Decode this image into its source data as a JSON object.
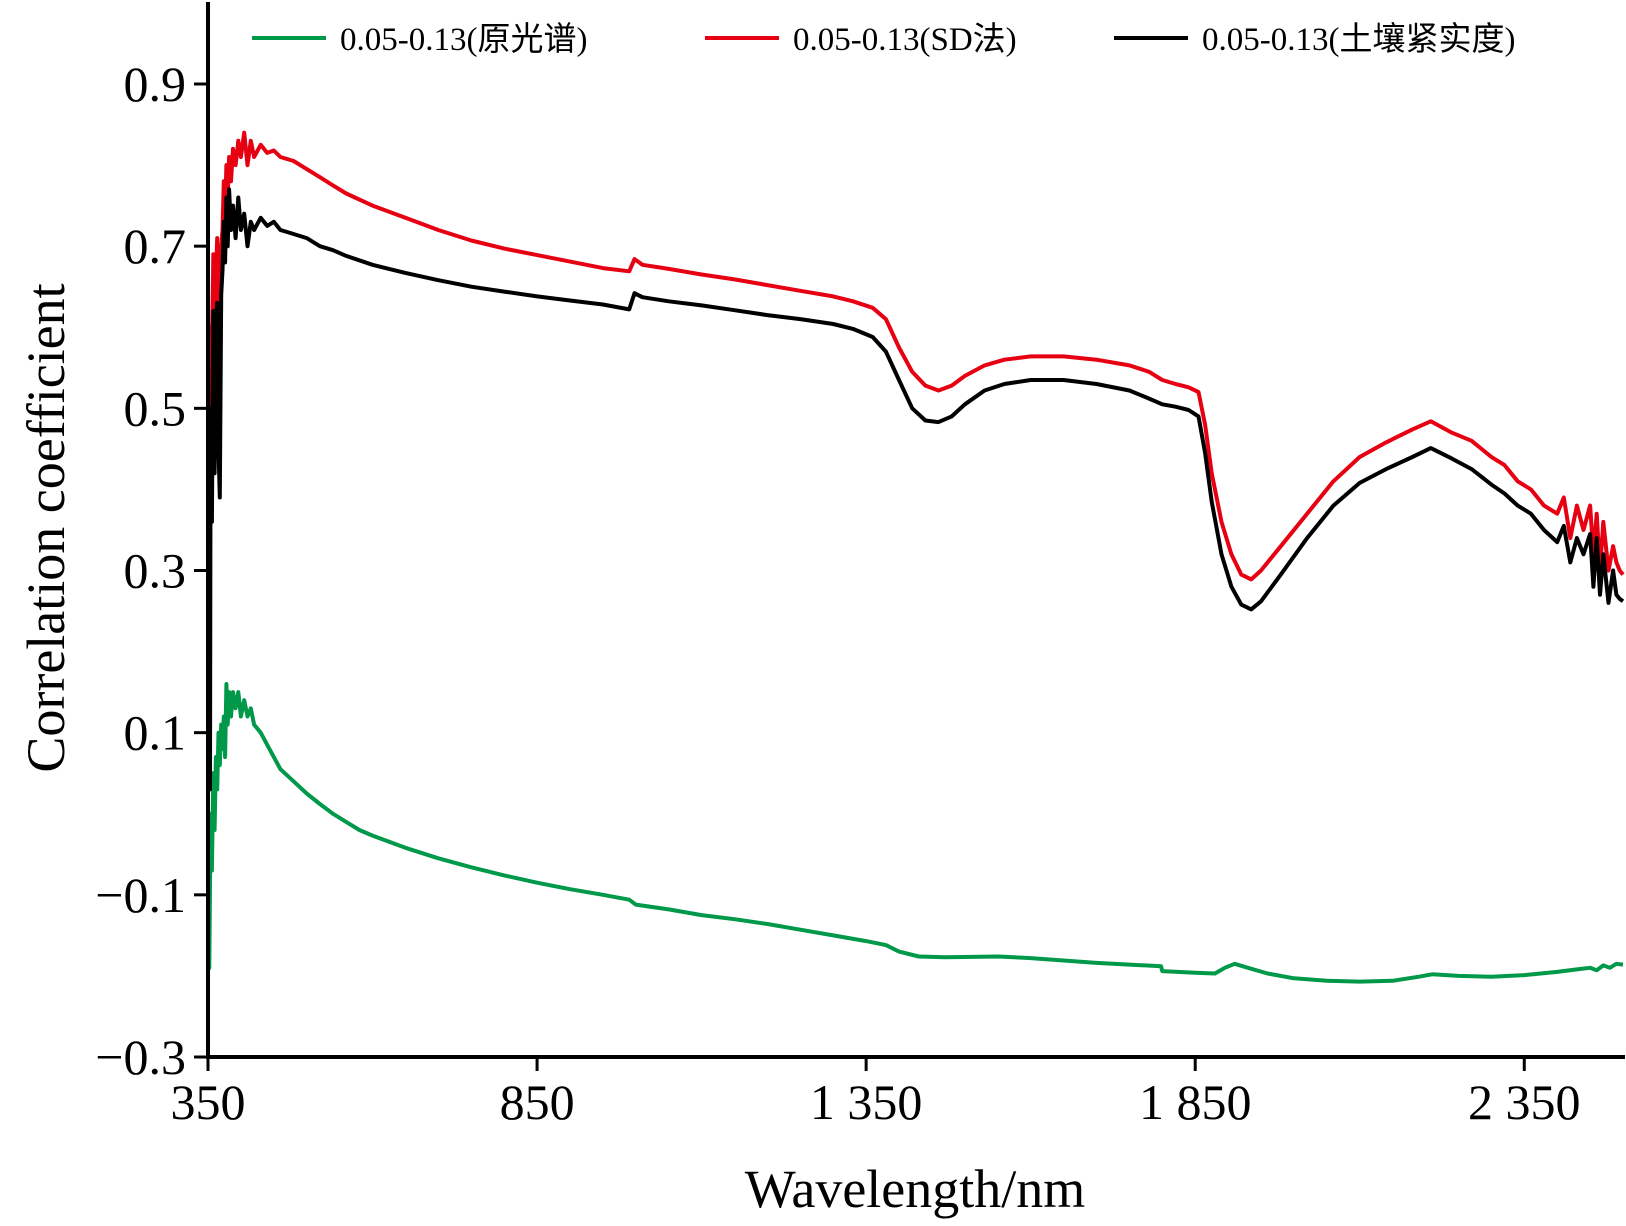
{
  "chart_data": {
    "type": "line",
    "title": "",
    "xlabel": "Wavelength/nm",
    "ylabel": "Correlation coefficient",
    "xlim": [
      350,
      2500
    ],
    "ylim": [
      -0.3,
      1.0
    ],
    "x_ticks": [
      350,
      850,
      1350,
      1850,
      2350
    ],
    "x_tick_labels": [
      "350",
      "850",
      "1 350",
      "1 850",
      "2 350"
    ],
    "y_ticks": [
      0.9,
      0.7,
      0.5,
      0.3,
      0.1,
      -0.1,
      -0.3
    ],
    "y_tick_labels": [
      "0.9",
      "0.7",
      "0.5",
      "0.3",
      "0.1",
      "−0.1",
      "−0.3"
    ],
    "grid": false,
    "legend_position": "top",
    "series": [
      {
        "name": "0.05-0.13(原光谱)",
        "color": "#00994a",
        "points": [
          [
            350,
            -0.02
          ],
          [
            352,
            -0.19
          ],
          [
            354,
            0.0
          ],
          [
            356,
            -0.07
          ],
          [
            358,
            0.05
          ],
          [
            360,
            -0.02
          ],
          [
            362,
            0.07
          ],
          [
            364,
            0.03
          ],
          [
            366,
            0.1
          ],
          [
            368,
            0.06
          ],
          [
            370,
            0.11
          ],
          [
            372,
            0.08
          ],
          [
            374,
            0.12
          ],
          [
            376,
            0.07
          ],
          [
            378,
            0.16
          ],
          [
            380,
            0.11
          ],
          [
            382,
            0.15
          ],
          [
            385,
            0.12
          ],
          [
            388,
            0.15
          ],
          [
            392,
            0.13
          ],
          [
            396,
            0.15
          ],
          [
            400,
            0.12
          ],
          [
            405,
            0.14
          ],
          [
            410,
            0.12
          ],
          [
            415,
            0.13
          ],
          [
            420,
            0.11
          ],
          [
            430,
            0.1
          ],
          [
            440,
            0.085
          ],
          [
            450,
            0.07
          ],
          [
            460,
            0.055
          ],
          [
            480,
            0.04
          ],
          [
            500,
            0.025
          ],
          [
            520,
            0.012
          ],
          [
            540,
            0.0
          ],
          [
            560,
            -0.01
          ],
          [
            580,
            -0.02
          ],
          [
            600,
            -0.027
          ],
          [
            650,
            -0.042
          ],
          [
            700,
            -0.055
          ],
          [
            750,
            -0.066
          ],
          [
            800,
            -0.076
          ],
          [
            850,
            -0.085
          ],
          [
            900,
            -0.093
          ],
          [
            950,
            -0.1
          ],
          [
            990,
            -0.106
          ],
          [
            1000,
            -0.112
          ],
          [
            1050,
            -0.118
          ],
          [
            1100,
            -0.125
          ],
          [
            1150,
            -0.13
          ],
          [
            1200,
            -0.136
          ],
          [
            1250,
            -0.143
          ],
          [
            1300,
            -0.15
          ],
          [
            1350,
            -0.157
          ],
          [
            1380,
            -0.162
          ],
          [
            1400,
            -0.17
          ],
          [
            1430,
            -0.176
          ],
          [
            1470,
            -0.177
          ],
          [
            1550,
            -0.176
          ],
          [
            1600,
            -0.178
          ],
          [
            1650,
            -0.181
          ],
          [
            1700,
            -0.184
          ],
          [
            1750,
            -0.186
          ],
          [
            1798,
            -0.188
          ],
          [
            1800,
            -0.194
          ],
          [
            1850,
            -0.196
          ],
          [
            1880,
            -0.197
          ],
          [
            1895,
            -0.19
          ],
          [
            1910,
            -0.185
          ],
          [
            1930,
            -0.19
          ],
          [
            1960,
            -0.197
          ],
          [
            2000,
            -0.203
          ],
          [
            2050,
            -0.206
          ],
          [
            2100,
            -0.207
          ],
          [
            2150,
            -0.206
          ],
          [
            2190,
            -0.201
          ],
          [
            2210,
            -0.198
          ],
          [
            2250,
            -0.2
          ],
          [
            2300,
            -0.201
          ],
          [
            2350,
            -0.199
          ],
          [
            2400,
            -0.195
          ],
          [
            2430,
            -0.192
          ],
          [
            2450,
            -0.19
          ],
          [
            2460,
            -0.193
          ],
          [
            2470,
            -0.187
          ],
          [
            2480,
            -0.19
          ],
          [
            2490,
            -0.185
          ],
          [
            2500,
            -0.186
          ]
        ]
      },
      {
        "name": "0.05-0.13(SD法)",
        "color": "#e60012",
        "points": [
          [
            350,
            0.67
          ],
          [
            352,
            0.45
          ],
          [
            354,
            0.6
          ],
          [
            356,
            0.52
          ],
          [
            358,
            0.69
          ],
          [
            360,
            0.58
          ],
          [
            362,
            0.66
          ],
          [
            364,
            0.71
          ],
          [
            366,
            0.55
          ],
          [
            368,
            0.45
          ],
          [
            370,
            0.7
          ],
          [
            372,
            0.72
          ],
          [
            374,
            0.78
          ],
          [
            376,
            0.74
          ],
          [
            378,
            0.8
          ],
          [
            380,
            0.76
          ],
          [
            382,
            0.81
          ],
          [
            385,
            0.78
          ],
          [
            388,
            0.82
          ],
          [
            392,
            0.8
          ],
          [
            396,
            0.83
          ],
          [
            400,
            0.81
          ],
          [
            405,
            0.84
          ],
          [
            410,
            0.8
          ],
          [
            415,
            0.83
          ],
          [
            420,
            0.81
          ],
          [
            430,
            0.825
          ],
          [
            440,
            0.815
          ],
          [
            450,
            0.818
          ],
          [
            460,
            0.81
          ],
          [
            480,
            0.805
          ],
          [
            500,
            0.795
          ],
          [
            520,
            0.785
          ],
          [
            540,
            0.775
          ],
          [
            560,
            0.765
          ],
          [
            600,
            0.75
          ],
          [
            650,
            0.735
          ],
          [
            700,
            0.72
          ],
          [
            750,
            0.707
          ],
          [
            800,
            0.697
          ],
          [
            850,
            0.689
          ],
          [
            900,
            0.681
          ],
          [
            950,
            0.673
          ],
          [
            990,
            0.669
          ],
          [
            998,
            0.684
          ],
          [
            1010,
            0.677
          ],
          [
            1050,
            0.672
          ],
          [
            1100,
            0.665
          ],
          [
            1150,
            0.659
          ],
          [
            1200,
            0.652
          ],
          [
            1250,
            0.645
          ],
          [
            1300,
            0.638
          ],
          [
            1330,
            0.632
          ],
          [
            1360,
            0.624
          ],
          [
            1380,
            0.61
          ],
          [
            1400,
            0.575
          ],
          [
            1420,
            0.545
          ],
          [
            1440,
            0.528
          ],
          [
            1460,
            0.522
          ],
          [
            1480,
            0.528
          ],
          [
            1500,
            0.54
          ],
          [
            1530,
            0.553
          ],
          [
            1560,
            0.56
          ],
          [
            1600,
            0.564
          ],
          [
            1650,
            0.564
          ],
          [
            1700,
            0.56
          ],
          [
            1750,
            0.553
          ],
          [
            1780,
            0.545
          ],
          [
            1800,
            0.535
          ],
          [
            1820,
            0.53
          ],
          [
            1840,
            0.526
          ],
          [
            1855,
            0.52
          ],
          [
            1865,
            0.48
          ],
          [
            1875,
            0.42
          ],
          [
            1890,
            0.36
          ],
          [
            1905,
            0.32
          ],
          [
            1920,
            0.295
          ],
          [
            1935,
            0.289
          ],
          [
            1950,
            0.3
          ],
          [
            1980,
            0.33
          ],
          [
            2020,
            0.37
          ],
          [
            2060,
            0.41
          ],
          [
            2100,
            0.44
          ],
          [
            2140,
            0.458
          ],
          [
            2180,
            0.474
          ],
          [
            2208,
            0.484
          ],
          [
            2240,
            0.47
          ],
          [
            2270,
            0.46
          ],
          [
            2300,
            0.44
          ],
          [
            2320,
            0.43
          ],
          [
            2340,
            0.41
          ],
          [
            2360,
            0.4
          ],
          [
            2380,
            0.38
          ],
          [
            2400,
            0.37
          ],
          [
            2410,
            0.39
          ],
          [
            2420,
            0.34
          ],
          [
            2430,
            0.38
          ],
          [
            2440,
            0.35
          ],
          [
            2450,
            0.38
          ],
          [
            2455,
            0.32
          ],
          [
            2460,
            0.37
          ],
          [
            2465,
            0.3
          ],
          [
            2470,
            0.36
          ],
          [
            2478,
            0.3
          ],
          [
            2485,
            0.33
          ],
          [
            2490,
            0.31
          ],
          [
            2495,
            0.3
          ],
          [
            2500,
            0.295
          ]
        ]
      },
      {
        "name": "0.05-0.13(土壤紧实度)",
        "color": "#000000",
        "points": [
          [
            350,
            0.63
          ],
          [
            351,
            0.2
          ],
          [
            352,
            0.38
          ],
          [
            353,
            0.03
          ],
          [
            354,
            0.5
          ],
          [
            356,
            0.36
          ],
          [
            358,
            0.62
          ],
          [
            360,
            0.42
          ],
          [
            362,
            0.6
          ],
          [
            364,
            0.63
          ],
          [
            366,
            0.45
          ],
          [
            368,
            0.39
          ],
          [
            370,
            0.64
          ],
          [
            372,
            0.67
          ],
          [
            374,
            0.73
          ],
          [
            376,
            0.68
          ],
          [
            378,
            0.76
          ],
          [
            380,
            0.7
          ],
          [
            382,
            0.77
          ],
          [
            385,
            0.72
          ],
          [
            388,
            0.75
          ],
          [
            392,
            0.71
          ],
          [
            396,
            0.76
          ],
          [
            400,
            0.72
          ],
          [
            405,
            0.74
          ],
          [
            410,
            0.7
          ],
          [
            415,
            0.73
          ],
          [
            420,
            0.72
          ],
          [
            430,
            0.735
          ],
          [
            440,
            0.725
          ],
          [
            450,
            0.73
          ],
          [
            460,
            0.72
          ],
          [
            480,
            0.715
          ],
          [
            500,
            0.71
          ],
          [
            520,
            0.7
          ],
          [
            540,
            0.695
          ],
          [
            560,
            0.688
          ],
          [
            600,
            0.677
          ],
          [
            650,
            0.667
          ],
          [
            700,
            0.658
          ],
          [
            750,
            0.65
          ],
          [
            800,
            0.644
          ],
          [
            850,
            0.638
          ],
          [
            900,
            0.633
          ],
          [
            950,
            0.628
          ],
          [
            990,
            0.622
          ],
          [
            998,
            0.642
          ],
          [
            1010,
            0.637
          ],
          [
            1050,
            0.632
          ],
          [
            1100,
            0.627
          ],
          [
            1150,
            0.621
          ],
          [
            1200,
            0.615
          ],
          [
            1250,
            0.61
          ],
          [
            1300,
            0.604
          ],
          [
            1330,
            0.598
          ],
          [
            1360,
            0.588
          ],
          [
            1380,
            0.57
          ],
          [
            1400,
            0.535
          ],
          [
            1420,
            0.5
          ],
          [
            1440,
            0.485
          ],
          [
            1460,
            0.483
          ],
          [
            1480,
            0.49
          ],
          [
            1500,
            0.505
          ],
          [
            1530,
            0.522
          ],
          [
            1560,
            0.53
          ],
          [
            1600,
            0.535
          ],
          [
            1650,
            0.535
          ],
          [
            1700,
            0.53
          ],
          [
            1750,
            0.522
          ],
          [
            1780,
            0.512
          ],
          [
            1800,
            0.505
          ],
          [
            1820,
            0.502
          ],
          [
            1840,
            0.498
          ],
          [
            1855,
            0.49
          ],
          [
            1865,
            0.445
          ],
          [
            1875,
            0.385
          ],
          [
            1890,
            0.32
          ],
          [
            1905,
            0.28
          ],
          [
            1920,
            0.258
          ],
          [
            1935,
            0.252
          ],
          [
            1950,
            0.262
          ],
          [
            1980,
            0.295
          ],
          [
            2020,
            0.34
          ],
          [
            2060,
            0.38
          ],
          [
            2100,
            0.408
          ],
          [
            2140,
            0.425
          ],
          [
            2180,
            0.44
          ],
          [
            2208,
            0.451
          ],
          [
            2240,
            0.438
          ],
          [
            2270,
            0.425
          ],
          [
            2300,
            0.406
          ],
          [
            2320,
            0.395
          ],
          [
            2340,
            0.38
          ],
          [
            2360,
            0.37
          ],
          [
            2380,
            0.35
          ],
          [
            2400,
            0.335
          ],
          [
            2410,
            0.355
          ],
          [
            2420,
            0.31
          ],
          [
            2430,
            0.34
          ],
          [
            2440,
            0.32
          ],
          [
            2450,
            0.345
          ],
          [
            2455,
            0.28
          ],
          [
            2460,
            0.34
          ],
          [
            2465,
            0.27
          ],
          [
            2470,
            0.32
          ],
          [
            2478,
            0.26
          ],
          [
            2485,
            0.3
          ],
          [
            2490,
            0.27
          ],
          [
            2495,
            0.265
          ],
          [
            2500,
            0.262
          ]
        ]
      }
    ]
  }
}
